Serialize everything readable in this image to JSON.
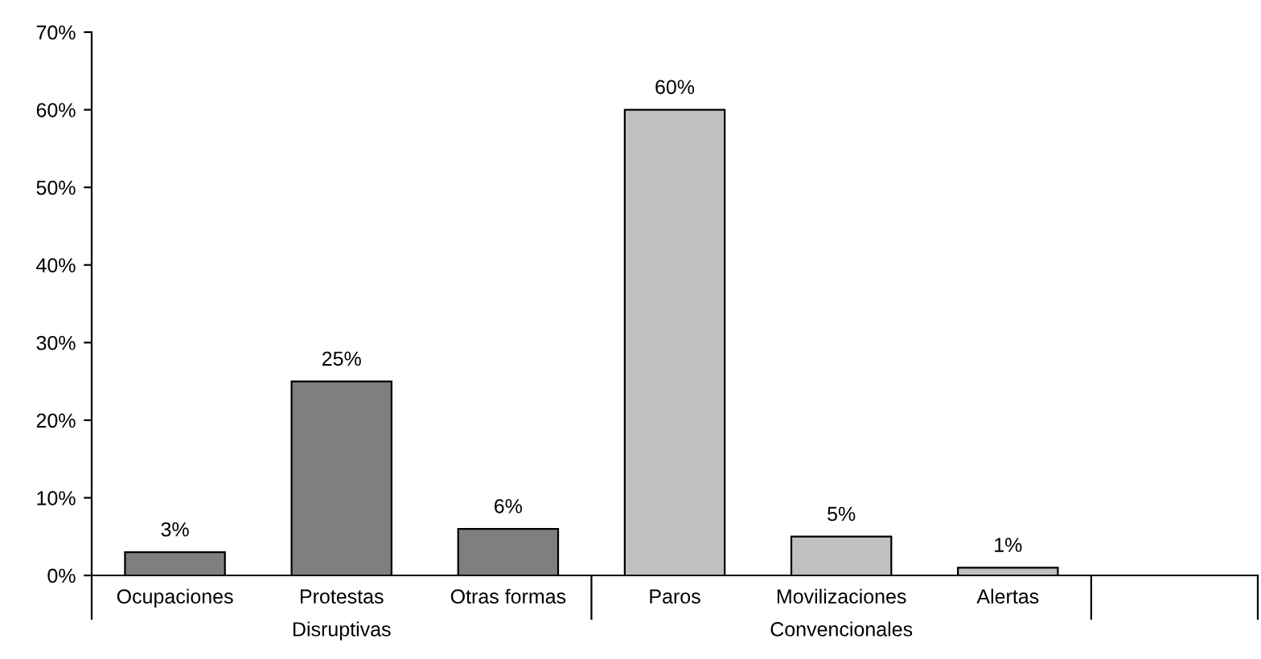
{
  "chart_data": {
    "type": "bar",
    "categories": [
      "Ocupaciones",
      "Protestas",
      "Otras formas",
      "Paros",
      "Movilizaciones",
      "Alertas",
      null
    ],
    "values": [
      3,
      25,
      6,
      60,
      5,
      1,
      null
    ],
    "colors": [
      "#7f7f7f",
      "#7f7f7f",
      "#7f7f7f",
      "#c0c0c0",
      "#c0c0c0",
      "#c0c0c0",
      "#c0c0c0"
    ],
    "value_labels": [
      "3%",
      "25%",
      "6%",
      "60%",
      "5%",
      "1%",
      null
    ],
    "ylim": [
      0,
      70
    ],
    "yticks": [
      {
        "value": 0,
        "label": "0%"
      },
      {
        "value": 10,
        "label": "10%"
      },
      {
        "value": 20,
        "label": "20%"
      },
      {
        "value": 30,
        "label": "30%"
      },
      {
        "value": 40,
        "label": "40%"
      },
      {
        "value": 50,
        "label": "50%"
      },
      {
        "value": 60,
        "label": "60%"
      },
      {
        "value": 70,
        "label": "70%"
      }
    ],
    "grid": false,
    "annotations": [
      "Disruptivas",
      "Convencionales"
    ]
  }
}
